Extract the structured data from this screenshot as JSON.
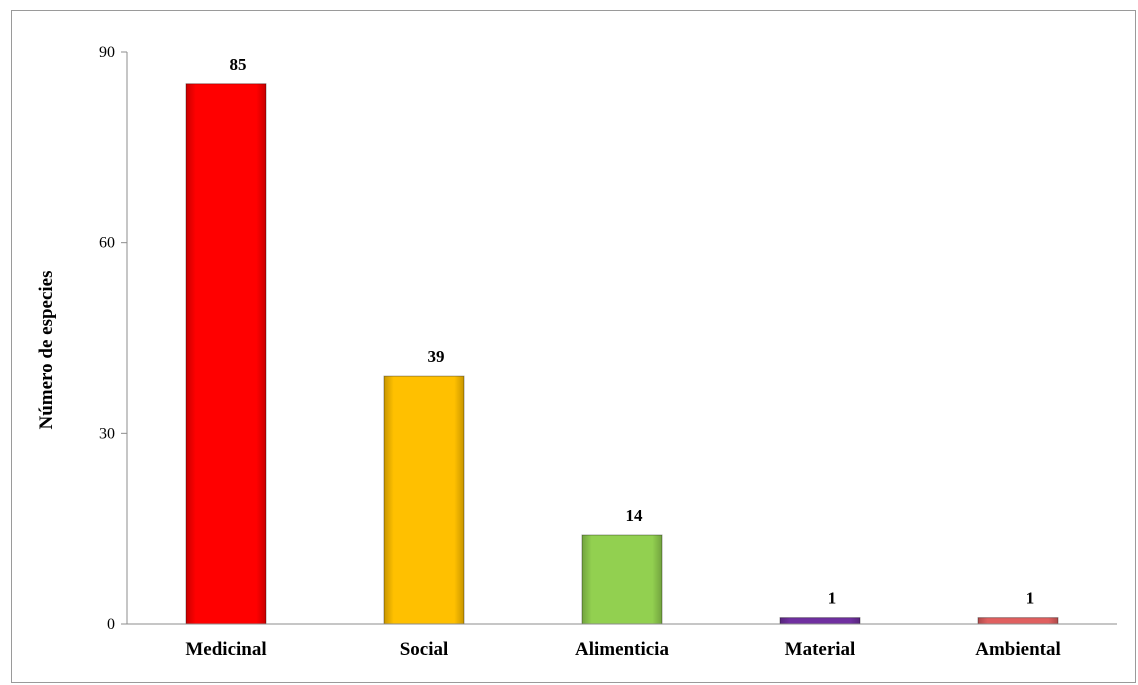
{
  "chart_data": {
    "type": "bar",
    "categories": [
      "Medicinal",
      "Social",
      "Alimenticia",
      "Material",
      "Ambiental"
    ],
    "values": [
      85,
      39,
      14,
      1,
      1
    ],
    "data_labels": [
      "85",
      "39",
      "14",
      "1",
      "1"
    ],
    "colors": [
      "#ff0000",
      "#ffc000",
      "#92d050",
      "#7030a0",
      "#e06060"
    ],
    "ylabel": "Número de especies",
    "ylim": [
      0,
      90
    ],
    "yticks": [
      0,
      30,
      60,
      90
    ],
    "grid": false,
    "legend": "none"
  }
}
